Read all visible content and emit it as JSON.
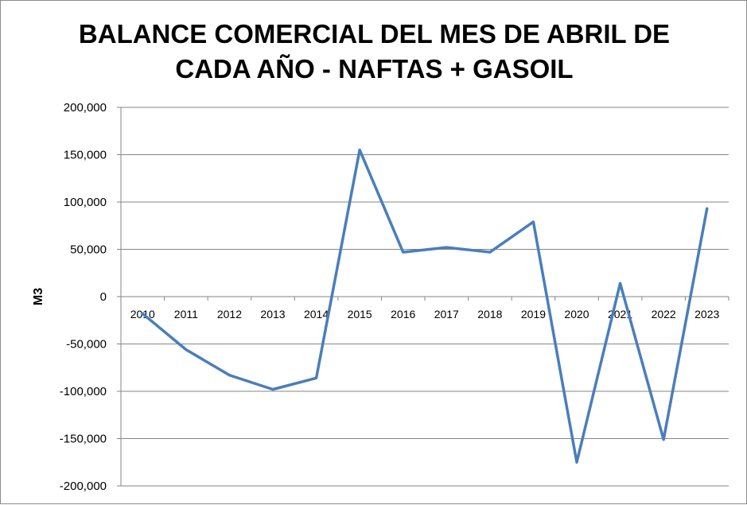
{
  "chart_data": {
    "type": "line",
    "title_lines": [
      "BALANCE COMERCIAL DEL MES DE ABRIL DE",
      "CADA AÑO - NAFTAS + GASOIL"
    ],
    "xlabel": "",
    "ylabel": "M3",
    "categories": [
      "2010",
      "2011",
      "2012",
      "2013",
      "2014",
      "2015",
      "2016",
      "2017",
      "2018",
      "2019",
      "2020",
      "2021",
      "2022",
      "2023"
    ],
    "series": [
      {
        "values": [
          -18000,
          -56000,
          -83000,
          -98000,
          -86000,
          155000,
          47000,
          52000,
          47000,
          79000,
          -175000,
          14000,
          -151000,
          93000
        ],
        "color": "#4a7ebb"
      }
    ],
    "ylim": [
      -200000,
      200000
    ],
    "y_ticks": [
      200000,
      150000,
      100000,
      50000,
      0,
      -50000,
      -100000,
      -150000,
      -200000
    ],
    "y_tick_labels": [
      "200,000",
      "150,000",
      "100,000",
      "50,000",
      "0",
      "-50,000",
      "-100,000",
      "-150,000",
      "-200,000"
    ],
    "grid": true,
    "legend": "none"
  }
}
